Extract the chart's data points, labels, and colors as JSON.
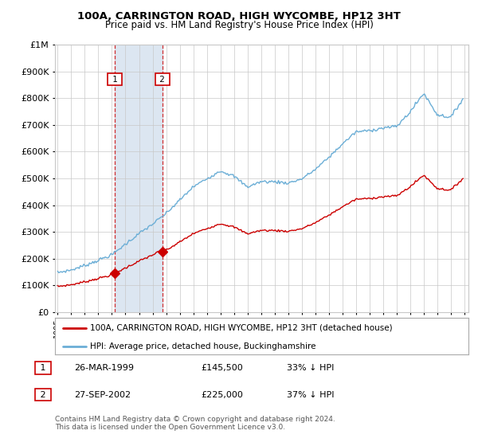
{
  "title": "100A, CARRINGTON ROAD, HIGH WYCOMBE, HP12 3HT",
  "subtitle": "Price paid vs. HM Land Registry's House Price Index (HPI)",
  "legend_line1": "100A, CARRINGTON ROAD, HIGH WYCOMBE, HP12 3HT (detached house)",
  "legend_line2": "HPI: Average price, detached house, Buckinghamshire",
  "footer": "Contains HM Land Registry data © Crown copyright and database right 2024.\nThis data is licensed under the Open Government Licence v3.0.",
  "transaction1_date": "26-MAR-1999",
  "transaction1_price": "£145,500",
  "transaction1_hpi": "33% ↓ HPI",
  "transaction2_date": "27-SEP-2002",
  "transaction2_price": "£225,000",
  "transaction2_hpi": "37% ↓ HPI",
  "hpi_color": "#6baed6",
  "price_color": "#cc0000",
  "highlight_color": "#dce6f1",
  "marker_box_color": "#cc0000",
  "grid_color": "#c8c8c8",
  "background_color": "#ffffff",
  "ylim_max": 1000000,
  "xlim_start": 1994.8,
  "xlim_end": 2025.3,
  "sale1_year": 1999.22,
  "sale1_price": 145500,
  "sale2_year": 2002.73,
  "sale2_price": 225000
}
